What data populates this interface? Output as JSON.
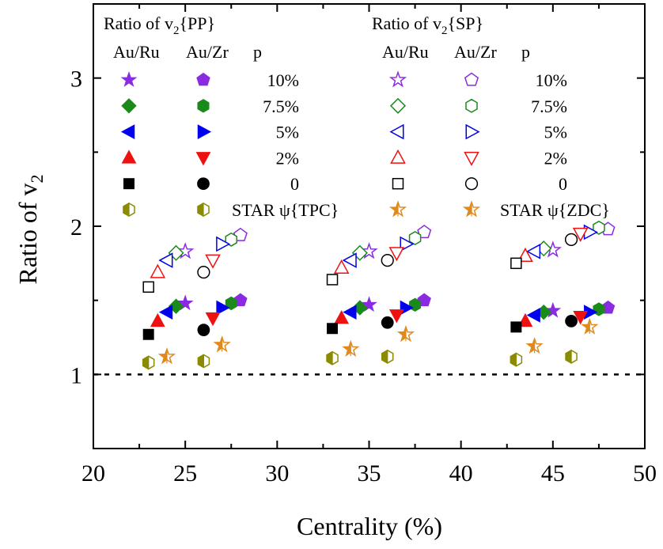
{
  "chart_data": {
    "type": "scatter",
    "xlabel": "Centrality (%)",
    "ylabel": "Ratio of v2",
    "xlim": [
      20,
      50
    ],
    "ylim": [
      0.5,
      3.5
    ],
    "xticks": [
      20,
      25,
      30,
      35,
      40,
      45,
      50
    ],
    "yticks": [
      1,
      2,
      3
    ],
    "reference_line": 1,
    "legend_left": {
      "title": "Ratio of v",
      "title_sub": "2",
      "title_suffix": "{PP}",
      "col_headers": [
        "Au/Ru",
        "Au/Zr",
        "p"
      ],
      "rows": [
        "10%",
        "7.5%",
        "5%",
        "2%",
        "0",
        "STAR ψ{TPC}"
      ]
    },
    "legend_right": {
      "title": "Ratio of v",
      "title_sub": "2",
      "title_suffix": "{SP}",
      "col_headers": [
        "Au/Ru",
        "Au/Zr",
        "p"
      ],
      "rows": [
        "10%",
        "7.5%",
        "5%",
        "2%",
        "0",
        "STAR ψ{ZDC}"
      ]
    },
    "series": [
      {
        "name": "PP Au/Ru p=10%",
        "marker": "star",
        "fill": "filled",
        "color": "#8a2be2",
        "x": [
          25,
          35,
          45
        ],
        "y": [
          1.48,
          1.47,
          1.43
        ]
      },
      {
        "name": "PP Au/Zr p=10%",
        "marker": "pentagon",
        "fill": "filled",
        "color": "#8a2be2",
        "x": [
          28,
          38,
          48
        ],
        "y": [
          1.5,
          1.5,
          1.45
        ]
      },
      {
        "name": "PP Au/Ru p=7.5%",
        "marker": "diamond",
        "fill": "filled",
        "color": "#1a8a1a",
        "x": [
          24.5,
          34.5,
          44.5
        ],
        "y": [
          1.46,
          1.45,
          1.42
        ]
      },
      {
        "name": "PP Au/Zr p=7.5%",
        "marker": "hexagon",
        "fill": "filled",
        "color": "#1a8a1a",
        "x": [
          27.5,
          37.5,
          47.5
        ],
        "y": [
          1.48,
          1.47,
          1.44
        ]
      },
      {
        "name": "PP Au/Ru p=5%",
        "marker": "triangle-left",
        "fill": "filled",
        "color": "#0000ee",
        "x": [
          24,
          34,
          44
        ],
        "y": [
          1.42,
          1.42,
          1.4
        ]
      },
      {
        "name": "PP Au/Zr p=5%",
        "marker": "triangle-right",
        "fill": "filled",
        "color": "#0000ee",
        "x": [
          27,
          37,
          47
        ],
        "y": [
          1.45,
          1.45,
          1.42
        ]
      },
      {
        "name": "PP Au/Ru p=2%",
        "marker": "triangle-up",
        "fill": "filled",
        "color": "#ee1111",
        "x": [
          23.5,
          33.5,
          43.5
        ],
        "y": [
          1.36,
          1.38,
          1.36
        ]
      },
      {
        "name": "PP Au/Zr p=2%",
        "marker": "triangle-down",
        "fill": "filled",
        "color": "#ee1111",
        "x": [
          26.5,
          36.5,
          46.5
        ],
        "y": [
          1.38,
          1.4,
          1.39
        ]
      },
      {
        "name": "PP Au/Ru p=0",
        "marker": "square",
        "fill": "filled",
        "color": "#000000",
        "x": [
          23,
          33,
          43
        ],
        "y": [
          1.27,
          1.31,
          1.32
        ]
      },
      {
        "name": "PP Au/Zr p=0",
        "marker": "circle",
        "fill": "filled",
        "color": "#000000",
        "x": [
          26,
          36,
          46
        ],
        "y": [
          1.3,
          1.35,
          1.36
        ]
      },
      {
        "name": "STAR ψ{TPC} Au/Ru",
        "marker": "hexagon",
        "fill": "half",
        "color": "#8b8b00",
        "x": [
          23,
          33,
          43
        ],
        "y": [
          1.08,
          1.11,
          1.1
        ]
      },
      {
        "name": "STAR ψ{TPC} Au/Zr",
        "marker": "hexagon",
        "fill": "half",
        "color": "#8b8b00",
        "x": [
          26,
          36,
          46
        ],
        "y": [
          1.09,
          1.12,
          1.12
        ]
      },
      {
        "name": "SP Au/Ru p=10%",
        "marker": "star",
        "fill": "open",
        "color": "#8a2be2",
        "x": [
          25,
          35,
          45
        ],
        "y": [
          1.83,
          1.83,
          1.84
        ]
      },
      {
        "name": "SP Au/Zr p=10%",
        "marker": "pentagon",
        "fill": "open",
        "color": "#8a2be2",
        "x": [
          28,
          38,
          48
        ],
        "y": [
          1.94,
          1.96,
          1.98
        ]
      },
      {
        "name": "SP Au/Ru p=7.5%",
        "marker": "diamond",
        "fill": "open",
        "color": "#1a8a1a",
        "x": [
          24.5,
          34.5,
          44.5
        ],
        "y": [
          1.82,
          1.82,
          1.85
        ]
      },
      {
        "name": "SP Au/Zr p=7.5%",
        "marker": "hexagon",
        "fill": "open",
        "color": "#1a8a1a",
        "x": [
          27.5,
          37.5,
          47.5
        ],
        "y": [
          1.91,
          1.92,
          1.99
        ]
      },
      {
        "name": "SP Au/Ru p=5%",
        "marker": "triangle-left",
        "fill": "open",
        "color": "#0000ee",
        "x": [
          24,
          34,
          44
        ],
        "y": [
          1.77,
          1.77,
          1.83
        ]
      },
      {
        "name": "SP Au/Zr p=5%",
        "marker": "triangle-right",
        "fill": "open",
        "color": "#0000ee",
        "x": [
          27,
          37,
          47
        ],
        "y": [
          1.88,
          1.88,
          1.96
        ]
      },
      {
        "name": "SP Au/Ru p=2%",
        "marker": "triangle-up",
        "fill": "open",
        "color": "#ee1111",
        "x": [
          23.5,
          33.5,
          43.5
        ],
        "y": [
          1.69,
          1.72,
          1.8
        ]
      },
      {
        "name": "SP Au/Zr p=2%",
        "marker": "triangle-down",
        "fill": "open",
        "color": "#ee1111",
        "x": [
          26.5,
          36.5,
          46.5
        ],
        "y": [
          1.77,
          1.82,
          1.95
        ]
      },
      {
        "name": "SP Au/Ru p=0",
        "marker": "square",
        "fill": "open",
        "color": "#000000",
        "x": [
          23,
          33,
          43
        ],
        "y": [
          1.59,
          1.64,
          1.75
        ]
      },
      {
        "name": "SP Au/Zr p=0",
        "marker": "circle",
        "fill": "open",
        "color": "#000000",
        "x": [
          26,
          36,
          46
        ],
        "y": [
          1.69,
          1.77,
          1.91
        ]
      },
      {
        "name": "STAR ψ{ZDC} Au/Ru",
        "marker": "star",
        "fill": "half",
        "color": "#e08a1e",
        "x": [
          24,
          34,
          44
        ],
        "y": [
          1.12,
          1.17,
          1.19
        ]
      },
      {
        "name": "STAR ψ{ZDC} Au/Zr",
        "marker": "star",
        "fill": "half",
        "color": "#e08a1e",
        "x": [
          27,
          37,
          47
        ],
        "y": [
          1.2,
          1.27,
          1.32
        ]
      }
    ]
  }
}
